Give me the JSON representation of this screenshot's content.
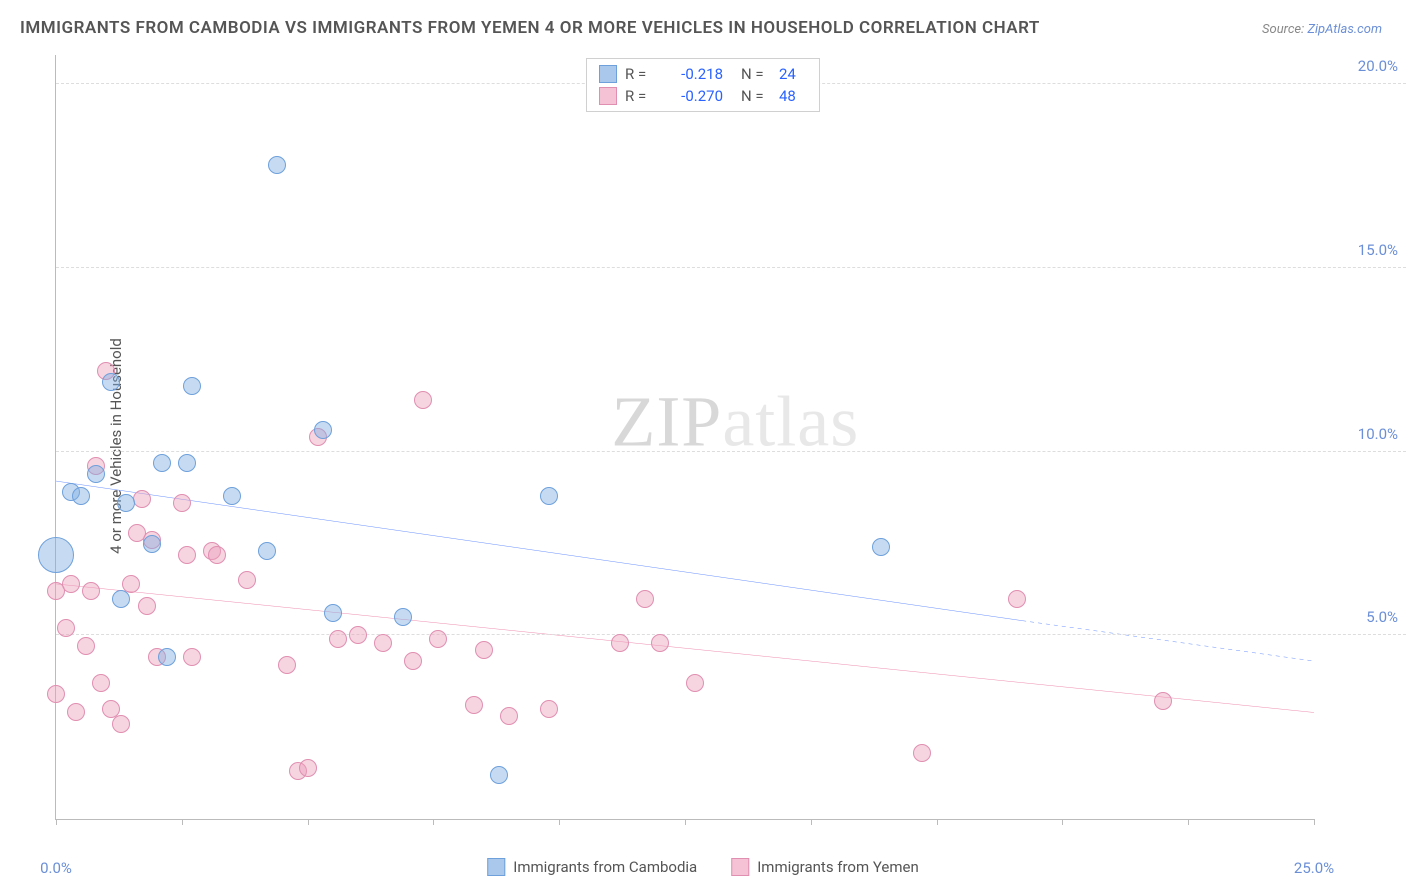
{
  "title": "IMMIGRANTS FROM CAMBODIA VS IMMIGRANTS FROM YEMEN 4 OR MORE VEHICLES IN HOUSEHOLD CORRELATION CHART",
  "source_prefix": "Source: ",
  "source_link": "ZipAtlas.com",
  "y_axis_label": "4 or more Vehicles in Household",
  "watermark_a": "ZIP",
  "watermark_b": "atlas",
  "chart": {
    "type": "scatter",
    "background_color": "#ffffff",
    "grid_color": "#dddddd",
    "axis_color": "#bbbbbb",
    "xlim": [
      0,
      25
    ],
    "ylim": [
      0,
      20.8
    ],
    "x_ticks": [
      0,
      2.5,
      5,
      7.5,
      10,
      12.5,
      15,
      17.5,
      20,
      22.5,
      25
    ],
    "x_tick_labels": {
      "0": "0.0%",
      "25": "25.0%"
    },
    "y_gridlines": [
      5,
      10,
      15,
      20
    ],
    "y_tick_labels": {
      "5": "5.0%",
      "10": "10.0%",
      "15": "15.0%",
      "20": "20.0%"
    },
    "tick_label_color": "#6b8fd6",
    "tick_label_fontsize": 15,
    "point_radius": 9,
    "point_radius_large": 18,
    "series": [
      {
        "name": "Immigrants from Cambodia",
        "fill": "rgba(129,175,227,0.45)",
        "stroke": "#6ea0db",
        "swatch_fill": "#a9c8ec",
        "swatch_border": "#6ea0db",
        "trend_color": "#2962ff",
        "trend_solid": {
          "x1": 0,
          "y1": 9.2,
          "x2": 19.2,
          "y2": 5.4
        },
        "trend_dash": {
          "x1": 19.2,
          "y1": 5.4,
          "x2": 25,
          "y2": 4.3
        },
        "R": "-0.218",
        "N": "24",
        "points": [
          {
            "x": 0.0,
            "y": 7.2,
            "r": 18
          },
          {
            "x": 0.3,
            "y": 8.9
          },
          {
            "x": 0.5,
            "y": 8.8
          },
          {
            "x": 0.8,
            "y": 9.4
          },
          {
            "x": 1.1,
            "y": 11.9
          },
          {
            "x": 1.3,
            "y": 6.0
          },
          {
            "x": 1.4,
            "y": 8.6
          },
          {
            "x": 1.9,
            "y": 7.5
          },
          {
            "x": 2.1,
            "y": 9.7
          },
          {
            "x": 2.2,
            "y": 4.4
          },
          {
            "x": 2.6,
            "y": 9.7
          },
          {
            "x": 2.7,
            "y": 11.8
          },
          {
            "x": 3.5,
            "y": 8.8
          },
          {
            "x": 4.2,
            "y": 7.3
          },
          {
            "x": 4.4,
            "y": 17.8
          },
          {
            "x": 5.3,
            "y": 10.6
          },
          {
            "x": 5.5,
            "y": 5.6
          },
          {
            "x": 6.9,
            "y": 5.5
          },
          {
            "x": 8.8,
            "y": 1.2
          },
          {
            "x": 9.8,
            "y": 8.8
          },
          {
            "x": 16.4,
            "y": 7.4
          }
        ]
      },
      {
        "name": "Immigrants from Yemen",
        "fill": "rgba(236,160,186,0.45)",
        "stroke": "#e08fb0",
        "swatch_fill": "#f4c2d4",
        "swatch_border": "#e08fb0",
        "trend_color": "#e75a8d",
        "trend_solid": {
          "x1": 0,
          "y1": 6.4,
          "x2": 25,
          "y2": 2.9
        },
        "R": "-0.270",
        "N": "48",
        "points": [
          {
            "x": 0.0,
            "y": 6.2
          },
          {
            "x": 0.0,
            "y": 3.4
          },
          {
            "x": 0.2,
            "y": 5.2
          },
          {
            "x": 0.3,
            "y": 6.4
          },
          {
            "x": 0.4,
            "y": 2.9
          },
          {
            "x": 0.6,
            "y": 4.7
          },
          {
            "x": 0.7,
            "y": 6.2
          },
          {
            "x": 0.8,
            "y": 9.6
          },
          {
            "x": 0.9,
            "y": 3.7
          },
          {
            "x": 1.0,
            "y": 12.2
          },
          {
            "x": 1.1,
            "y": 3.0
          },
          {
            "x": 1.3,
            "y": 2.6
          },
          {
            "x": 1.5,
            "y": 6.4
          },
          {
            "x": 1.6,
            "y": 7.8
          },
          {
            "x": 1.7,
            "y": 8.7
          },
          {
            "x": 1.8,
            "y": 5.8
          },
          {
            "x": 1.9,
            "y": 7.6
          },
          {
            "x": 2.0,
            "y": 4.4
          },
          {
            "x": 2.5,
            "y": 8.6
          },
          {
            "x": 2.6,
            "y": 7.2
          },
          {
            "x": 2.7,
            "y": 4.4
          },
          {
            "x": 3.1,
            "y": 7.3
          },
          {
            "x": 3.2,
            "y": 7.2
          },
          {
            "x": 3.8,
            "y": 6.5
          },
          {
            "x": 4.6,
            "y": 4.2
          },
          {
            "x": 4.8,
            "y": 1.3
          },
          {
            "x": 5.0,
            "y": 1.4
          },
          {
            "x": 5.2,
            "y": 10.4
          },
          {
            "x": 5.6,
            "y": 4.9
          },
          {
            "x": 6.0,
            "y": 5.0
          },
          {
            "x": 6.5,
            "y": 4.8
          },
          {
            "x": 7.1,
            "y": 4.3
          },
          {
            "x": 7.3,
            "y": 11.4
          },
          {
            "x": 7.6,
            "y": 4.9
          },
          {
            "x": 8.3,
            "y": 3.1
          },
          {
            "x": 8.5,
            "y": 4.6
          },
          {
            "x": 9.0,
            "y": 2.8
          },
          {
            "x": 9.8,
            "y": 3.0
          },
          {
            "x": 11.2,
            "y": 4.8
          },
          {
            "x": 11.7,
            "y": 6.0
          },
          {
            "x": 12.0,
            "y": 4.8
          },
          {
            "x": 12.7,
            "y": 3.7
          },
          {
            "x": 17.2,
            "y": 1.8
          },
          {
            "x": 19.1,
            "y": 6.0
          },
          {
            "x": 22.0,
            "y": 3.2
          }
        ]
      }
    ]
  },
  "legend_labels": {
    "R": "R =",
    "N": "N ="
  }
}
